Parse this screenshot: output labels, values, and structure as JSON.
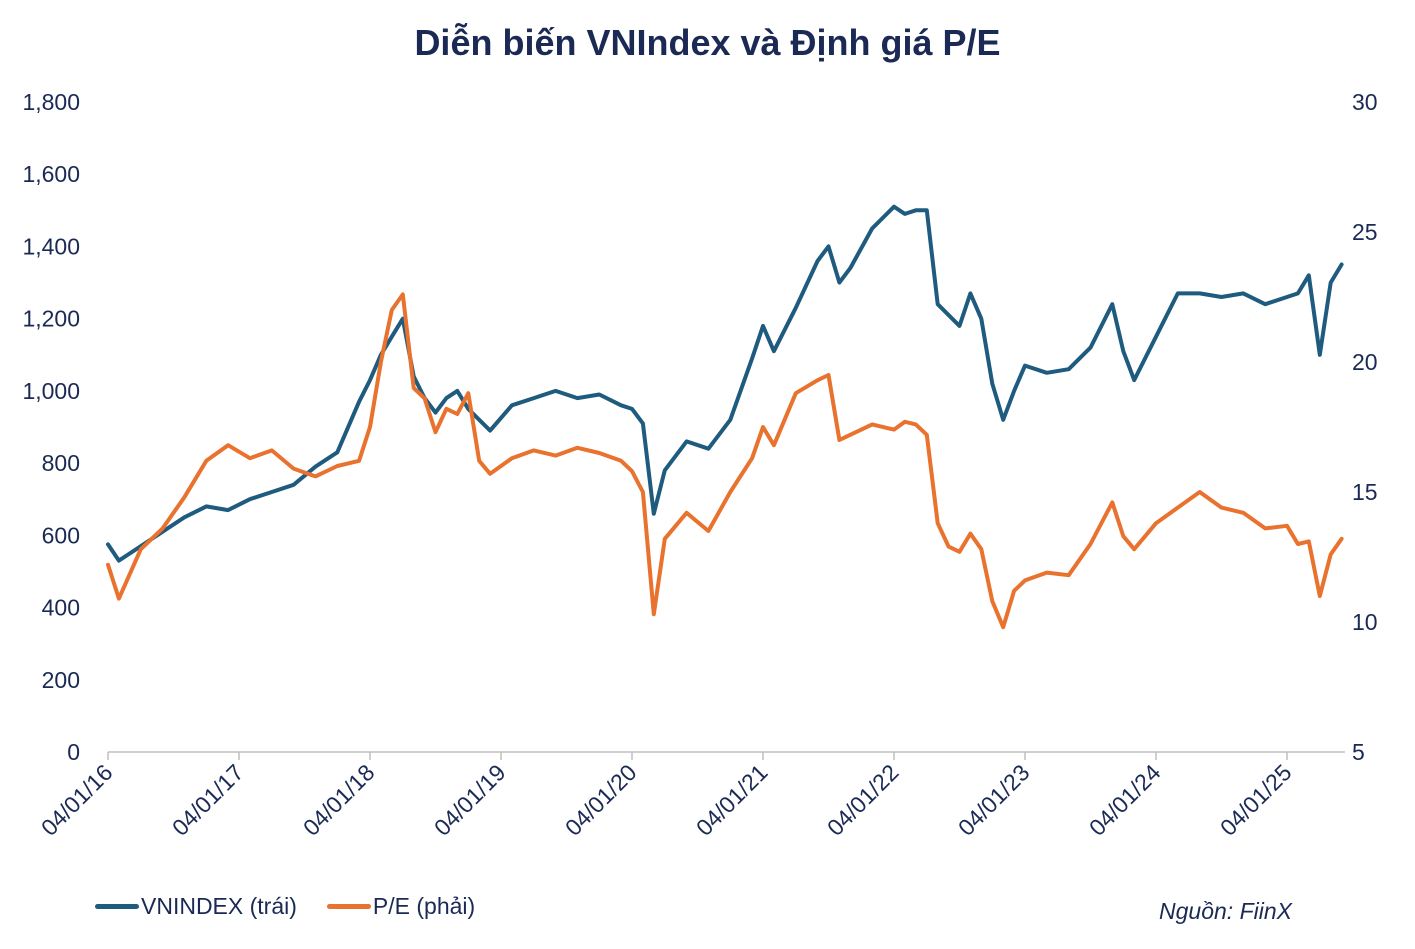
{
  "chart_data": {
    "type": "line",
    "title": "Diễn biến VNIndex và Định giá P/E",
    "source": "Nguồn: FiinX",
    "x_tick_labels": [
      "04/01/16",
      "04/01/17",
      "04/01/18",
      "04/01/19",
      "04/01/20",
      "04/01/21",
      "04/01/22",
      "04/01/23",
      "04/01/24",
      "04/01/25"
    ],
    "y_left": {
      "ylim": [
        0,
        1800
      ],
      "ticks": [
        "0",
        "200",
        "400",
        "600",
        "800",
        "1,000",
        "1,200",
        "1,400",
        "1,600",
        "1,800"
      ]
    },
    "y_right": {
      "ylim": [
        5,
        30
      ],
      "ticks": [
        "5",
        "10",
        "15",
        "20",
        "25",
        "30"
      ]
    },
    "grid": false,
    "legend_position": "bottom-left",
    "series": [
      {
        "name": "VNINDEX (trái)",
        "axis": "left",
        "color": "#1f5b7e",
        "x": [
          "2016-01",
          "2016-02",
          "2016-04",
          "2016-06",
          "2016-08",
          "2016-10",
          "2016-12",
          "2017-02",
          "2017-04",
          "2017-06",
          "2017-08",
          "2017-10",
          "2017-12",
          "2018-01",
          "2018-02",
          "2018-03",
          "2018-04",
          "2018-05",
          "2018-06",
          "2018-07",
          "2018-08",
          "2018-09",
          "2018-10",
          "2018-11",
          "2018-12",
          "2019-02",
          "2019-04",
          "2019-06",
          "2019-08",
          "2019-10",
          "2019-12",
          "2020-01",
          "2020-02",
          "2020-03",
          "2020-04",
          "2020-06",
          "2020-08",
          "2020-10",
          "2020-12",
          "2021-01",
          "2021-02",
          "2021-04",
          "2021-06",
          "2021-07",
          "2021-08",
          "2021-09",
          "2021-11",
          "2022-01",
          "2022-02",
          "2022-03",
          "2022-04",
          "2022-05",
          "2022-06",
          "2022-07",
          "2022-08",
          "2022-09",
          "2022-10",
          "2022-11",
          "2022-12",
          "2023-01",
          "2023-03",
          "2023-05",
          "2023-07",
          "2023-09",
          "2023-10",
          "2023-11",
          "2024-01",
          "2024-03",
          "2024-05",
          "2024-07",
          "2024-09",
          "2024-11",
          "2025-01",
          "2025-02",
          "2025-03",
          "2025-04",
          "2025-05",
          "2025-06"
        ],
        "y": [
          575,
          530,
          570,
          610,
          650,
          680,
          670,
          700,
          720,
          740,
          790,
          830,
          970,
          1030,
          1100,
          1150,
          1200,
          1040,
          980,
          940,
          980,
          1000,
          950,
          920,
          890,
          960,
          980,
          1000,
          980,
          990,
          960,
          950,
          910,
          660,
          780,
          860,
          840,
          920,
          1090,
          1180,
          1110,
          1230,
          1360,
          1400,
          1300,
          1340,
          1450,
          1510,
          1490,
          1500,
          1500,
          1240,
          1210,
          1180,
          1270,
          1200,
          1020,
          920,
          1000,
          1070,
          1050,
          1060,
          1120,
          1240,
          1110,
          1030,
          1150,
          1270,
          1270,
          1260,
          1270,
          1240,
          1260,
          1270,
          1320,
          1100,
          1300,
          1350
        ]
      },
      {
        "name": "P/E (phải)",
        "axis": "right",
        "color": "#e8722e",
        "x": [
          "2016-01",
          "2016-02",
          "2016-04",
          "2016-06",
          "2016-08",
          "2016-10",
          "2016-12",
          "2017-02",
          "2017-04",
          "2017-06",
          "2017-08",
          "2017-10",
          "2017-12",
          "2018-01",
          "2018-02",
          "2018-03",
          "2018-04",
          "2018-05",
          "2018-06",
          "2018-07",
          "2018-08",
          "2018-09",
          "2018-10",
          "2018-11",
          "2018-12",
          "2019-02",
          "2019-04",
          "2019-06",
          "2019-08",
          "2019-10",
          "2019-12",
          "2020-01",
          "2020-02",
          "2020-03",
          "2020-04",
          "2020-06",
          "2020-08",
          "2020-10",
          "2020-12",
          "2021-01",
          "2021-02",
          "2021-04",
          "2021-06",
          "2021-07",
          "2021-08",
          "2021-09",
          "2021-11",
          "2022-01",
          "2022-02",
          "2022-03",
          "2022-04",
          "2022-05",
          "2022-06",
          "2022-07",
          "2022-08",
          "2022-09",
          "2022-10",
          "2022-11",
          "2022-12",
          "2023-01",
          "2023-03",
          "2023-05",
          "2023-07",
          "2023-09",
          "2023-10",
          "2023-11",
          "2024-01",
          "2024-03",
          "2024-05",
          "2024-07",
          "2024-09",
          "2024-11",
          "2025-01",
          "2025-02",
          "2025-03",
          "2025-04",
          "2025-05",
          "2025-06"
        ],
        "y": [
          12.2,
          10.9,
          12.8,
          13.6,
          14.8,
          16.2,
          16.8,
          16.3,
          16.6,
          15.9,
          15.6,
          16.0,
          16.2,
          17.5,
          20.0,
          22.0,
          22.6,
          19.0,
          18.6,
          17.3,
          18.2,
          18.0,
          18.8,
          16.2,
          15.7,
          16.3,
          16.6,
          16.4,
          16.7,
          16.5,
          16.2,
          15.8,
          15.0,
          10.3,
          13.2,
          14.2,
          13.5,
          15.0,
          16.3,
          17.5,
          16.8,
          18.8,
          19.3,
          19.5,
          17.0,
          17.2,
          17.6,
          17.4,
          17.7,
          17.6,
          17.2,
          13.8,
          12.9,
          12.7,
          13.4,
          12.8,
          10.8,
          9.8,
          11.2,
          11.6,
          11.9,
          11.8,
          13.0,
          14.6,
          13.3,
          12.8,
          13.8,
          14.4,
          15.0,
          14.4,
          14.2,
          13.6,
          13.7,
          13.0,
          13.1,
          11.0,
          12.6,
          13.2
        ]
      }
    ]
  }
}
